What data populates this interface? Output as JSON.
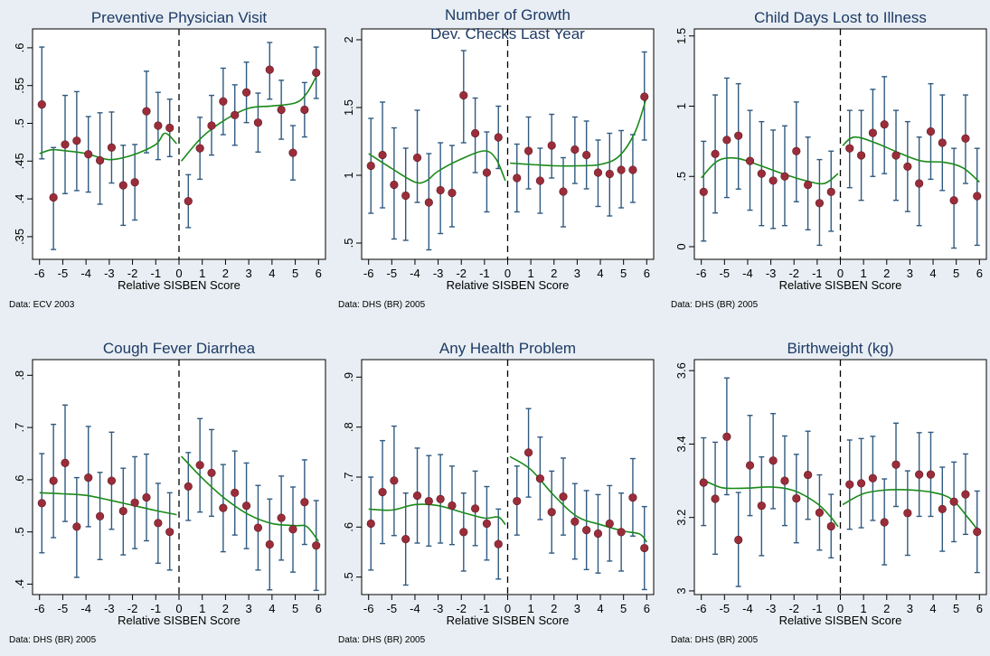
{
  "colors": {
    "background": "#e8eef3",
    "plot_bg": "#ffffff",
    "title": "#1e3a66",
    "marker": "#9b2d3a",
    "error_bar": "#305a80",
    "fit_line": "#1a8a1a",
    "cutoff_line": "#000000"
  },
  "chart_data": [
    {
      "type": "scatter",
      "title": "Preventive Physician Visit",
      "xlabel": "Relative SISBEN Score",
      "note": "Data: ECV 2003",
      "xlim": [
        -6.3,
        6.3
      ],
      "xticks": [
        -6,
        -5,
        -4,
        -3,
        -2,
        -1,
        0,
        1,
        2,
        3,
        4,
        5,
        6
      ],
      "ylim": [
        0.32,
        0.625
      ],
      "yticks": [
        0.35,
        0.4,
        0.45,
        0.5,
        0.55,
        0.6
      ],
      "ytick_labels": [
        ".35",
        ".4",
        ".45",
        ".5",
        ".55",
        ".6"
      ],
      "cutoff": 0,
      "x": [
        -5.9,
        -5.4,
        -4.9,
        -4.4,
        -3.9,
        -3.4,
        -2.9,
        -2.4,
        -1.9,
        -1.4,
        -0.9,
        -0.4,
        0.4,
        0.9,
        1.4,
        1.9,
        2.4,
        2.9,
        3.4,
        3.9,
        4.4,
        4.9,
        5.4,
        5.9
      ],
      "y": [
        0.525,
        0.402,
        0.472,
        0.477,
        0.459,
        0.451,
        0.468,
        0.418,
        0.422,
        0.516,
        0.497,
        0.494,
        0.397,
        0.467,
        0.497,
        0.529,
        0.511,
        0.541,
        0.501,
        0.571,
        0.518,
        0.461,
        0.518,
        0.567
      ],
      "ci_low": [
        0.453,
        0.333,
        0.407,
        0.411,
        0.409,
        0.393,
        0.421,
        0.365,
        0.372,
        0.461,
        0.452,
        0.456,
        0.362,
        0.426,
        0.458,
        0.485,
        0.471,
        0.501,
        0.462,
        0.532,
        0.479,
        0.425,
        0.482,
        0.533
      ],
      "ci_high": [
        0.601,
        0.468,
        0.537,
        0.542,
        0.509,
        0.514,
        0.515,
        0.471,
        0.472,
        0.569,
        0.541,
        0.532,
        0.432,
        0.508,
        0.537,
        0.573,
        0.551,
        0.581,
        0.54,
        0.607,
        0.557,
        0.497,
        0.554,
        0.601
      ],
      "fit_left": [
        [
          -6,
          0.46
        ],
        [
          -5.5,
          0.465
        ],
        [
          -5,
          0.464
        ],
        [
          -4,
          0.46
        ],
        [
          -3,
          0.452
        ],
        [
          -2,
          0.458
        ],
        [
          -1,
          0.472
        ],
        [
          -0.6,
          0.487
        ],
        [
          -0.1,
          0.473
        ]
      ],
      "fit_right": [
        [
          0.1,
          0.45
        ],
        [
          1,
          0.482
        ],
        [
          2,
          0.505
        ],
        [
          3,
          0.52
        ],
        [
          4,
          0.523
        ],
        [
          5,
          0.527
        ],
        [
          5.5,
          0.54
        ],
        [
          6,
          0.568
        ]
      ]
    },
    {
      "type": "scatter",
      "title": "Number of Growth",
      "title_line2": "Dev. Checks Last Year",
      "xlabel": "Relative SISBEN Score",
      "note": "Data: DHS (BR) 2005",
      "xlim": [
        -6.3,
        6.3
      ],
      "xticks": [
        -6,
        -5,
        -4,
        -3,
        -2,
        -1,
        0,
        1,
        2,
        3,
        4,
        5,
        6
      ],
      "ylim": [
        0.38,
        2.08
      ],
      "yticks": [
        0.5,
        1,
        1.5,
        2
      ],
      "ytick_labels": [
        ".5",
        "1",
        "1.5",
        "2"
      ],
      "cutoff": 0,
      "x": [
        -5.9,
        -5.4,
        -4.9,
        -4.4,
        -3.9,
        -3.4,
        -2.9,
        -2.4,
        -1.9,
        -1.4,
        -0.9,
        -0.4,
        0.4,
        0.9,
        1.4,
        1.9,
        2.4,
        2.9,
        3.4,
        3.9,
        4.4,
        4.9,
        5.4,
        5.9
      ],
      "y": [
        1.07,
        1.15,
        0.93,
        0.85,
        1.13,
        0.8,
        0.89,
        0.87,
        1.59,
        1.31,
        1.02,
        1.28,
        0.98,
        1.18,
        0.96,
        1.22,
        0.88,
        1.19,
        1.15,
        1.02,
        1.01,
        1.04,
        1.04,
        1.58
      ],
      "ci_low": [
        0.72,
        0.76,
        0.53,
        0.52,
        0.8,
        0.45,
        0.57,
        0.62,
        1.24,
        1.02,
        0.73,
        1.05,
        0.73,
        0.9,
        0.72,
        0.98,
        0.62,
        0.94,
        0.9,
        0.77,
        0.7,
        0.76,
        0.8,
        1.26
      ],
      "ci_high": [
        1.42,
        1.54,
        1.35,
        1.2,
        1.48,
        1.16,
        1.24,
        1.22,
        1.92,
        1.57,
        1.32,
        1.51,
        1.23,
        1.43,
        1.2,
        1.45,
        1.13,
        1.43,
        1.4,
        1.26,
        1.31,
        1.33,
        1.3,
        1.91
      ],
      "fit_left": [
        [
          -6,
          1.16
        ],
        [
          -5,
          1.05
        ],
        [
          -4,
          0.95
        ],
        [
          -3.5,
          0.96
        ],
        [
          -3,
          1.03
        ],
        [
          -2,
          1.12
        ],
        [
          -1,
          1.18
        ],
        [
          -0.5,
          1.12
        ],
        [
          -0.1,
          0.96
        ]
      ],
      "fit_right": [
        [
          0.1,
          1.09
        ],
        [
          1,
          1.08
        ],
        [
          2,
          1.07
        ],
        [
          3,
          1.07
        ],
        [
          4,
          1.08
        ],
        [
          4.8,
          1.14
        ],
        [
          5.5,
          1.32
        ],
        [
          6,
          1.58
        ]
      ]
    },
    {
      "type": "scatter",
      "title": "Child Days Lost to Illness",
      "xlabel": "Relative SISBEN Score",
      "note": "Data: DHS (BR) 2005",
      "xlim": [
        -6.3,
        6.3
      ],
      "xticks": [
        -6,
        -5,
        -4,
        -3,
        -2,
        -1,
        0,
        1,
        2,
        3,
        4,
        5,
        6
      ],
      "ylim": [
        -0.09,
        1.55
      ],
      "yticks": [
        0,
        0.5,
        1,
        1.5
      ],
      "ytick_labels": [
        "0",
        ".5",
        "1",
        "1.5"
      ],
      "cutoff": 0,
      "x": [
        -5.9,
        -5.4,
        -4.9,
        -4.4,
        -3.9,
        -3.4,
        -2.9,
        -2.4,
        -1.9,
        -1.4,
        -0.9,
        -0.4,
        0.4,
        0.9,
        1.4,
        1.9,
        2.4,
        2.9,
        3.4,
        3.9,
        4.4,
        4.9,
        5.4,
        5.9
      ],
      "y": [
        0.39,
        0.66,
        0.76,
        0.79,
        0.61,
        0.52,
        0.47,
        0.5,
        0.68,
        0.44,
        0.31,
        0.39,
        0.7,
        0.65,
        0.81,
        0.87,
        0.65,
        0.57,
        0.45,
        0.82,
        0.74,
        0.33,
        0.77,
        0.36
      ],
      "ci_low": [
        0.04,
        0.24,
        0.35,
        0.41,
        0.26,
        0.15,
        0.13,
        0.15,
        0.32,
        0.12,
        0.01,
        0.11,
        0.42,
        0.33,
        0.5,
        0.52,
        0.33,
        0.25,
        0.15,
        0.48,
        0.4,
        -0.01,
        0.45,
        0.01
      ],
      "ci_high": [
        0.75,
        1.08,
        1.2,
        1.16,
        0.97,
        0.89,
        0.83,
        0.86,
        1.03,
        0.78,
        0.62,
        0.68,
        0.97,
        0.97,
        1.12,
        1.21,
        0.97,
        0.89,
        0.78,
        1.16,
        1.08,
        0.7,
        1.08,
        0.7
      ],
      "fit_left": [
        [
          -6,
          0.49
        ],
        [
          -5.3,
          0.61
        ],
        [
          -4.5,
          0.63
        ],
        [
          -3.5,
          0.58
        ],
        [
          -2.5,
          0.52
        ],
        [
          -1.5,
          0.47
        ],
        [
          -0.7,
          0.45
        ],
        [
          -0.1,
          0.52
        ]
      ],
      "fit_right": [
        [
          0.1,
          0.72
        ],
        [
          0.6,
          0.78
        ],
        [
          1.5,
          0.74
        ],
        [
          2.5,
          0.67
        ],
        [
          3.5,
          0.61
        ],
        [
          4.5,
          0.6
        ],
        [
          5.3,
          0.56
        ],
        [
          6,
          0.46
        ]
      ]
    },
    {
      "type": "scatter",
      "title": "Cough Fever Diarrhea",
      "xlabel": "Relative SISBEN Score",
      "note": "Data: DHS (BR) 2005",
      "xlim": [
        -6.3,
        6.3
      ],
      "xticks": [
        -6,
        -5,
        -4,
        -3,
        -2,
        -1,
        0,
        1,
        2,
        3,
        4,
        5,
        6
      ],
      "ylim": [
        0.38,
        0.83
      ],
      "yticks": [
        0.4,
        0.5,
        0.6,
        0.7,
        0.8
      ],
      "ytick_labels": [
        ".4",
        ".5",
        ".6",
        ".7",
        ".8"
      ],
      "cutoff": 0,
      "x": [
        -5.9,
        -5.4,
        -4.9,
        -4.4,
        -3.9,
        -3.4,
        -2.9,
        -2.4,
        -1.9,
        -1.4,
        -0.9,
        -0.4,
        0.4,
        0.9,
        1.4,
        1.9,
        2.4,
        2.9,
        3.4,
        3.9,
        4.4,
        4.9,
        5.4,
        5.9
      ],
      "y": [
        0.555,
        0.598,
        0.632,
        0.51,
        0.604,
        0.53,
        0.598,
        0.54,
        0.556,
        0.566,
        0.517,
        0.5,
        0.587,
        0.628,
        0.613,
        0.546,
        0.575,
        0.55,
        0.508,
        0.476,
        0.527,
        0.505,
        0.557,
        0.474
      ],
      "ci_low": [
        0.46,
        0.489,
        0.52,
        0.413,
        0.51,
        0.447,
        0.505,
        0.456,
        0.468,
        0.483,
        0.44,
        0.427,
        0.522,
        0.538,
        0.53,
        0.462,
        0.494,
        0.468,
        0.427,
        0.389,
        0.446,
        0.423,
        0.476,
        0.388
      ],
      "ci_high": [
        0.65,
        0.706,
        0.743,
        0.604,
        0.702,
        0.614,
        0.691,
        0.622,
        0.644,
        0.649,
        0.593,
        0.575,
        0.652,
        0.717,
        0.696,
        0.629,
        0.655,
        0.632,
        0.589,
        0.563,
        0.607,
        0.586,
        0.638,
        0.56
      ],
      "fit_left": [
        [
          -6,
          0.575
        ],
        [
          -5,
          0.573
        ],
        [
          -4,
          0.57
        ],
        [
          -3,
          0.561
        ],
        [
          -2,
          0.551
        ],
        [
          -1,
          0.541
        ],
        [
          -0.1,
          0.533
        ]
      ],
      "fit_right": [
        [
          0.1,
          0.645
        ],
        [
          1,
          0.603
        ],
        [
          2,
          0.563
        ],
        [
          3,
          0.533
        ],
        [
          4,
          0.516
        ],
        [
          5,
          0.512
        ],
        [
          5.5,
          0.51
        ],
        [
          6,
          0.482
        ]
      ]
    },
    {
      "type": "scatter",
      "title": "Any Health Problem",
      "xlabel": "Relative SISBEN Score",
      "note": "Data: DHS (BR) 2005",
      "xlim": [
        -6.3,
        6.3
      ],
      "xticks": [
        -6,
        -5,
        -4,
        -3,
        -2,
        -1,
        0,
        1,
        2,
        3,
        4,
        5,
        6
      ],
      "ylim": [
        0.465,
        0.935
      ],
      "yticks": [
        0.5,
        0.6,
        0.7,
        0.8,
        0.9
      ],
      "ytick_labels": [
        ".5",
        ".6",
        ".7",
        ".8",
        ".9"
      ],
      "cutoff": 0,
      "x": [
        -5.9,
        -5.4,
        -4.9,
        -4.4,
        -3.9,
        -3.4,
        -2.9,
        -2.4,
        -1.9,
        -1.4,
        -0.9,
        -0.4,
        0.4,
        0.9,
        1.4,
        1.9,
        2.4,
        2.9,
        3.4,
        3.9,
        4.4,
        4.9,
        5.4,
        5.9
      ],
      "y": [
        0.607,
        0.67,
        0.693,
        0.576,
        0.663,
        0.652,
        0.656,
        0.643,
        0.59,
        0.637,
        0.607,
        0.566,
        0.652,
        0.749,
        0.697,
        0.63,
        0.661,
        0.611,
        0.594,
        0.587,
        0.607,
        0.59,
        0.659,
        0.558
      ],
      "ci_low": [
        0.514,
        0.567,
        0.583,
        0.484,
        0.568,
        0.562,
        0.568,
        0.565,
        0.512,
        0.563,
        0.534,
        0.496,
        0.584,
        0.66,
        0.615,
        0.548,
        0.584,
        0.536,
        0.515,
        0.508,
        0.532,
        0.512,
        0.582,
        0.475
      ],
      "ci_high": [
        0.7,
        0.773,
        0.802,
        0.668,
        0.758,
        0.743,
        0.745,
        0.722,
        0.668,
        0.712,
        0.681,
        0.636,
        0.722,
        0.837,
        0.78,
        0.712,
        0.738,
        0.687,
        0.673,
        0.665,
        0.683,
        0.668,
        0.737,
        0.641
      ],
      "fit_left": [
        [
          -6,
          0.636
        ],
        [
          -5,
          0.634
        ],
        [
          -4,
          0.645
        ],
        [
          -3,
          0.643
        ],
        [
          -2,
          0.63
        ],
        [
          -1,
          0.618
        ],
        [
          -0.4,
          0.62
        ],
        [
          -0.1,
          0.605
        ]
      ],
      "fit_right": [
        [
          0.1,
          0.741
        ],
        [
          1,
          0.715
        ],
        [
          2,
          0.663
        ],
        [
          3,
          0.621
        ],
        [
          4,
          0.605
        ],
        [
          5,
          0.592
        ],
        [
          5.7,
          0.586
        ],
        [
          6,
          0.57
        ]
      ]
    },
    {
      "type": "scatter",
      "title": "Birthweight (kg)",
      "xlabel": "Relative SISBEN Score",
      "note": "Data: DHS (BR) 2005",
      "xlim": [
        -6.3,
        6.3
      ],
      "xticks": [
        -6,
        -5,
        -4,
        -3,
        -2,
        -1,
        0,
        1,
        2,
        3,
        4,
        5,
        6
      ],
      "ylim": [
        2.99,
        3.63
      ],
      "yticks": [
        3.0,
        3.2,
        3.4,
        3.6
      ],
      "ytick_labels": [
        "3",
        "3.2",
        "3.4",
        "3.6"
      ],
      "cutoff": 0,
      "x": [
        -5.9,
        -5.4,
        -4.9,
        -4.4,
        -3.9,
        -3.4,
        -2.9,
        -2.4,
        -1.9,
        -1.4,
        -0.9,
        -0.4,
        0.4,
        0.9,
        1.4,
        1.9,
        2.4,
        2.9,
        3.4,
        3.9,
        4.4,
        4.9,
        5.4,
        5.9
      ],
      "y": [
        3.295,
        3.251,
        3.42,
        3.139,
        3.342,
        3.232,
        3.355,
        3.3,
        3.252,
        3.316,
        3.213,
        3.176,
        3.29,
        3.293,
        3.307,
        3.187,
        3.344,
        3.212,
        3.317,
        3.317,
        3.223,
        3.243,
        3.263,
        3.161
      ],
      "ci_low": [
        3.178,
        3.1,
        3.262,
        3.012,
        3.205,
        3.096,
        3.224,
        3.178,
        3.131,
        3.195,
        3.111,
        3.09,
        3.168,
        3.172,
        3.192,
        3.071,
        3.23,
        3.097,
        3.203,
        3.203,
        3.108,
        3.134,
        3.154,
        3.05
      ],
      "ci_high": [
        3.417,
        3.405,
        3.58,
        3.268,
        3.478,
        3.365,
        3.483,
        3.422,
        3.372,
        3.435,
        3.316,
        3.263,
        3.411,
        3.415,
        3.421,
        3.305,
        3.457,
        3.327,
        3.431,
        3.432,
        3.337,
        3.351,
        3.373,
        3.272
      ],
      "fit_left": [
        [
          -6,
          3.305
        ],
        [
          -5.5,
          3.29
        ],
        [
          -5,
          3.28
        ],
        [
          -4,
          3.28
        ],
        [
          -3,
          3.283
        ],
        [
          -2,
          3.273
        ],
        [
          -1,
          3.238
        ],
        [
          -0.4,
          3.2
        ],
        [
          -0.1,
          3.175
        ]
      ],
      "fit_right": [
        [
          0.1,
          3.235
        ],
        [
          1,
          3.265
        ],
        [
          2,
          3.275
        ],
        [
          3,
          3.275
        ],
        [
          4,
          3.268
        ],
        [
          4.8,
          3.25
        ],
        [
          5.5,
          3.2
        ],
        [
          6,
          3.16
        ]
      ]
    }
  ]
}
